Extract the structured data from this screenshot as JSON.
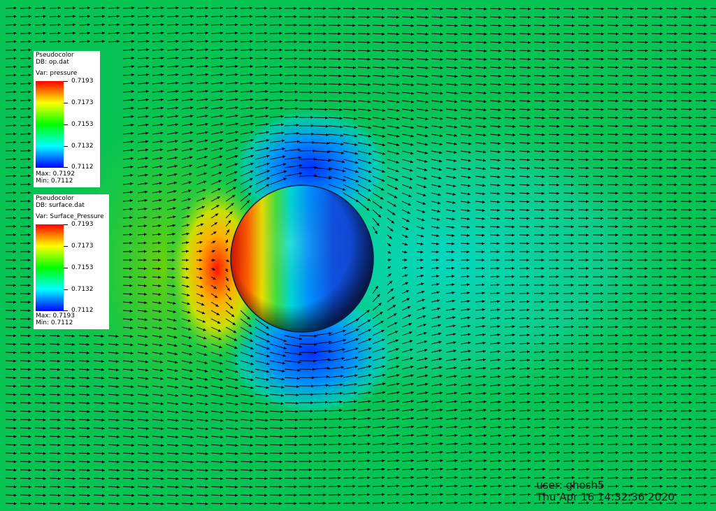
{
  "legends": [
    {
      "plot": "Pseudocolor",
      "db": "DB: op.dat",
      "var": "Var: pressure",
      "ticks": [
        "0.7193",
        "0.7173",
        "0.7153",
        "0.7132",
        "0.7112"
      ],
      "max": "Max:  0.7192",
      "min": "Min:  0.7112"
    },
    {
      "plot": "Pseudocolor",
      "db": "DB: surface.dat",
      "var": "Var: Surface_Pressure",
      "ticks": [
        "0.7193",
        "0.7173",
        "0.7153",
        "0.7132",
        "0.7112"
      ],
      "max": "Max:  0.7193",
      "min": "Min:  0.7112"
    }
  ],
  "footer": {
    "user": "user: ghosh5",
    "date": "Thu Apr 16 14:32:36 2020"
  },
  "colors": {
    "background_field": "#05c453",
    "high_pressure": "#ff1a00",
    "low_pressure": "#0040ff",
    "vector_arrows": "#000000"
  }
}
